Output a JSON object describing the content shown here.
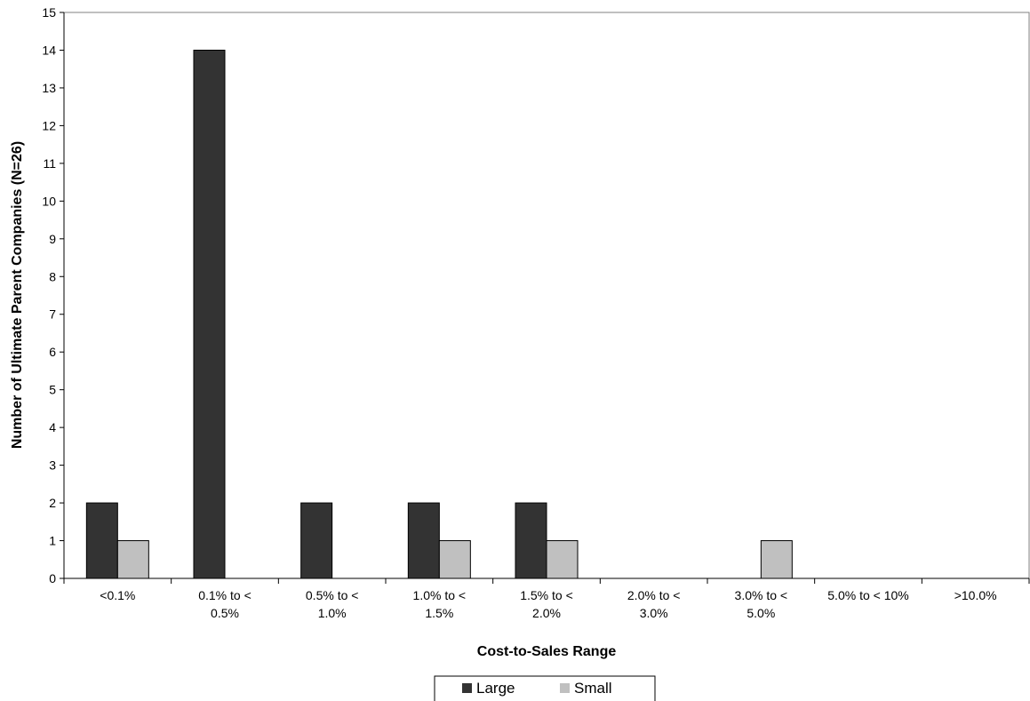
{
  "chart_data": {
    "type": "bar",
    "categories": [
      [
        "<0.1%"
      ],
      [
        "0.1% to <",
        "0.5%"
      ],
      [
        "0.5% to <",
        "1.0%"
      ],
      [
        "1.0% to <",
        "1.5%"
      ],
      [
        "1.5% to <",
        "2.0%"
      ],
      [
        "2.0% to <",
        "3.0%"
      ],
      [
        "3.0% to <",
        "5.0%"
      ],
      [
        "5.0% to < 10%"
      ],
      [
        ">10.0%"
      ]
    ],
    "series": [
      {
        "name": "Large",
        "color": "#333333",
        "values": [
          2,
          14,
          2,
          2,
          2,
          0,
          0,
          0,
          0
        ]
      },
      {
        "name": "Small",
        "color": "#c0c0c0",
        "values": [
          1,
          0,
          0,
          1,
          1,
          0,
          1,
          0,
          0
        ]
      }
    ],
    "xlabel": "Cost-to-Sales Range",
    "ylabel": "Number of Ultimate Parent Companies (N=26)",
    "ylim": [
      0,
      15
    ],
    "yticks": [
      0,
      1,
      2,
      3,
      4,
      5,
      6,
      7,
      8,
      9,
      10,
      11,
      12,
      13,
      14,
      15
    ],
    "grid": false,
    "legend_position": "bottom"
  }
}
